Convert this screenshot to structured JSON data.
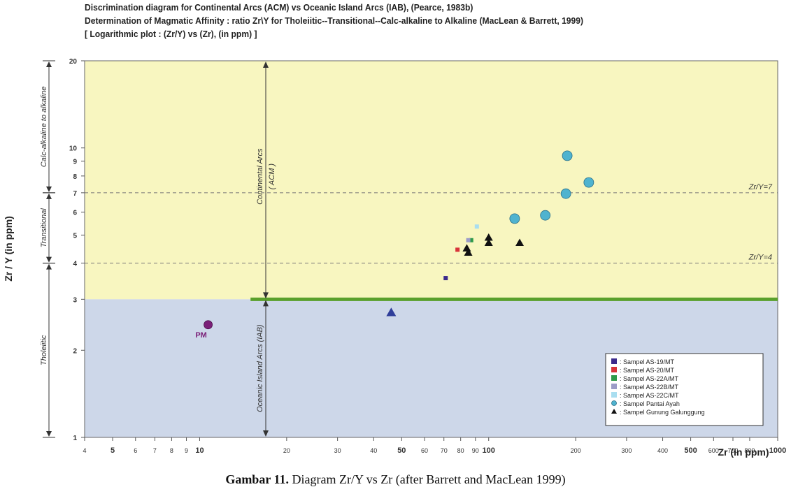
{
  "chart_data": {
    "type": "scatter",
    "title_lines": [
      "Discrimination diagram for Continental Arcs (ACM) vs Oceanic Island Arcs (IAB), (Pearce, 1983b)",
      "Determination of Magmatic Affinity : ratio Zr\\Y for Tholeiitic--Transitional--Calc-alkaline to Alkaline (MacLean & Barrett, 1999)",
      "[ Logarithmic plot : (Zr/Y) vs (Zr), (in ppm) ]"
    ],
    "xlabel": "Zr (in ppm)",
    "ylabel": "Zr / Y (in ppm)",
    "x_scale": "log",
    "y_scale": "log",
    "xlim": [
      4,
      1000
    ],
    "ylim": [
      1,
      20
    ],
    "x_ticks": [
      {
        "value": 4,
        "label": "4",
        "bold": false
      },
      {
        "value": 5,
        "label": "5",
        "bold": true
      },
      {
        "value": 6,
        "label": "6",
        "bold": false
      },
      {
        "value": 7,
        "label": "7",
        "bold": false
      },
      {
        "value": 8,
        "label": "8",
        "bold": false
      },
      {
        "value": 9,
        "label": "9",
        "bold": false
      },
      {
        "value": 10,
        "label": "10",
        "bold": true
      },
      {
        "value": 20,
        "label": "20",
        "bold": false
      },
      {
        "value": 30,
        "label": "30",
        "bold": false
      },
      {
        "value": 40,
        "label": "40",
        "bold": false
      },
      {
        "value": 50,
        "label": "50",
        "bold": true
      },
      {
        "value": 60,
        "label": "60",
        "bold": false
      },
      {
        "value": 70,
        "label": "70",
        "bold": false
      },
      {
        "value": 80,
        "label": "80",
        "bold": false
      },
      {
        "value": 90,
        "label": "90",
        "bold": false
      },
      {
        "value": 100,
        "label": "100",
        "bold": true
      },
      {
        "value": 200,
        "label": "200",
        "bold": false
      },
      {
        "value": 300,
        "label": "300",
        "bold": false
      },
      {
        "value": 400,
        "label": "400",
        "bold": false
      },
      {
        "value": 500,
        "label": "500",
        "bold": true
      },
      {
        "value": 600,
        "label": "600",
        "bold": false
      },
      {
        "value": 700,
        "label": "700",
        "bold": false
      },
      {
        "value": 800,
        "label": "800",
        "bold": false
      },
      {
        "value": 1000,
        "label": "1000",
        "bold": true
      }
    ],
    "y_ticks": [
      {
        "value": 1,
        "label": "1"
      },
      {
        "value": 2,
        "label": "2"
      },
      {
        "value": 3,
        "label": "3"
      },
      {
        "value": 4,
        "label": "4"
      },
      {
        "value": 5,
        "label": "5"
      },
      {
        "value": 6,
        "label": "6"
      },
      {
        "value": 7,
        "label": "7"
      },
      {
        "value": 8,
        "label": "8"
      },
      {
        "value": 9,
        "label": "9"
      },
      {
        "value": 10,
        "label": "10"
      },
      {
        "value": 20,
        "label": "20"
      }
    ],
    "regions": [
      {
        "name": "Continental Arcs (ACM)",
        "y_from": 3,
        "y_to": 20,
        "color": "#f8f6c0"
      },
      {
        "name": "Oceanic Island Arcs (IAB)",
        "y_from": 1,
        "y_to": 3,
        "color": "#cdd7e9"
      }
    ],
    "boundary": {
      "y": 3,
      "x_from": 15,
      "x_to": 1000,
      "color": "#5aa02c"
    },
    "reference_lines": [
      {
        "y": 7,
        "label": "Zr/Y=7"
      },
      {
        "y": 4,
        "label": "Zr/Y=4"
      }
    ],
    "region_labels": {
      "continental": "Continental Arcs",
      "continental_abbr": "( ACM )",
      "oceanic": "Oceanic Island Arcs (IAB)"
    },
    "affinity_labels": [
      {
        "label": "Calc-alkaline to alkaline",
        "y_from": 7,
        "y_to": 20
      },
      {
        "label": "Transitional",
        "y_from": 4,
        "y_to": 7
      },
      {
        "label": "Tholeiitic",
        "y_from": 1,
        "y_to": 4
      }
    ],
    "series": [
      {
        "name": ": Sampel AS-19/MT",
        "marker": "square",
        "color": "#3b2a8c",
        "points": [
          {
            "x": 71,
            "y": 3.55
          }
        ]
      },
      {
        "name": ": Sampel AS-20/MT",
        "marker": "square",
        "color": "#d8343a",
        "points": [
          {
            "x": 78,
            "y": 4.45
          }
        ]
      },
      {
        "name": ": Sampel AS-22A/MT",
        "marker": "square",
        "color": "#2f9a4a",
        "points": [
          {
            "x": 87,
            "y": 4.8
          }
        ]
      },
      {
        "name": ": Sampel AS-22B/MT",
        "marker": "square",
        "color": "#9c9cc8",
        "points": [
          {
            "x": 85,
            "y": 4.8
          }
        ]
      },
      {
        "name": ": Sampel AS-22C/MT",
        "marker": "square",
        "color": "#a9def0",
        "points": [
          {
            "x": 91,
            "y": 5.35
          }
        ]
      },
      {
        "name": ": Sampel Pantai Ayah",
        "marker": "circle",
        "color": "#4fb3cf",
        "points": [
          {
            "x": 123,
            "y": 5.7
          },
          {
            "x": 157,
            "y": 5.85
          },
          {
            "x": 185,
            "y": 6.95
          },
          {
            "x": 187,
            "y": 9.4
          },
          {
            "x": 222,
            "y": 7.6
          }
        ]
      },
      {
        "name": ": Sampel Gunung Galunggung",
        "marker": "triangle",
        "color": "#111111",
        "points": [
          {
            "x": 84,
            "y": 4.5
          },
          {
            "x": 85,
            "y": 4.35
          },
          {
            "x": 100,
            "y": 4.7
          },
          {
            "x": 100,
            "y": 4.9
          },
          {
            "x": 128,
            "y": 4.7
          }
        ]
      }
    ],
    "extra_points": [
      {
        "x": 10.7,
        "y": 2.45,
        "label": "PM",
        "marker": "circle",
        "color": "#7a1f78"
      },
      {
        "x": 46,
        "y": 2.7,
        "label": "",
        "marker": "triangle",
        "color": "#2f3e9a"
      }
    ],
    "legend_position": "bottom-right"
  },
  "caption": {
    "prefix": "Gambar 11.",
    "text": " Diagram Zr/Y vs Zr (after Barrett and MacLean 1999)"
  }
}
